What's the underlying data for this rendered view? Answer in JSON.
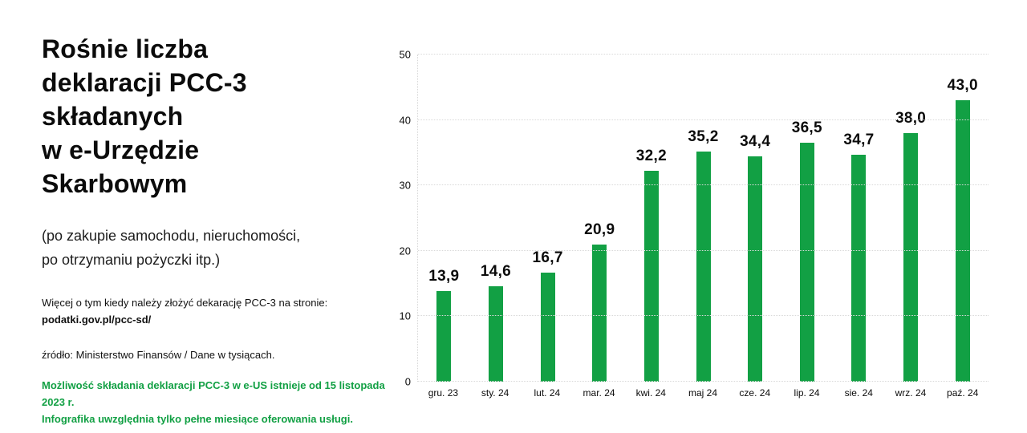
{
  "header": {
    "title_lines": [
      "Rośnie liczba",
      "deklaracji PCC-3",
      "składanych",
      "w e-Urzędzie",
      "Skarbowym"
    ],
    "subtitle_lines": [
      "(po zakupie samochodu, nieruchomości,",
      "po otrzymaniu pożyczki itp.)"
    ]
  },
  "info": {
    "line": "Więcej o tym kiedy należy złożyć dekarację PCC-3 na stronie:",
    "link": "podatki.gov.pl/pcc-sd/",
    "source": "źródło: Ministerstwo Finansów / Dane w tysiącach."
  },
  "note_lines": [
    "Możliwość składania deklaracji PCC-3 w e-US istnieje od 15 listopada 2023 r.",
    "Infografika uwzględnia tylko pełne miesiące oferowania usługi."
  ],
  "colors": {
    "green": "#12a044",
    "gridline": "#d9d9d9",
    "text": "#0b0b0b"
  },
  "chart_data": {
    "type": "bar",
    "categories": [
      "gru. 23",
      "sty. 24",
      "lut. 24",
      "mar. 24",
      "kwi. 24",
      "maj 24",
      "cze. 24",
      "lip. 24",
      "sie. 24",
      "wrz. 24",
      "paź. 24"
    ],
    "values": [
      13.9,
      14.6,
      16.7,
      20.9,
      32.2,
      35.2,
      34.4,
      36.5,
      34.7,
      38.0,
      43.0
    ],
    "value_labels": [
      "13,9",
      "14,6",
      "16,7",
      "20,9",
      "32,2",
      "35,2",
      "34,4",
      "36,5",
      "34,7",
      "38,0",
      "43,0"
    ],
    "title": "",
    "xlabel": "",
    "ylabel": "",
    "ylim": [
      0,
      50
    ],
    "yticks": [
      0,
      10,
      20,
      30,
      40,
      50
    ],
    "grid": "dotted-horizontal",
    "legend": "none",
    "bar_color": "#12a044"
  }
}
